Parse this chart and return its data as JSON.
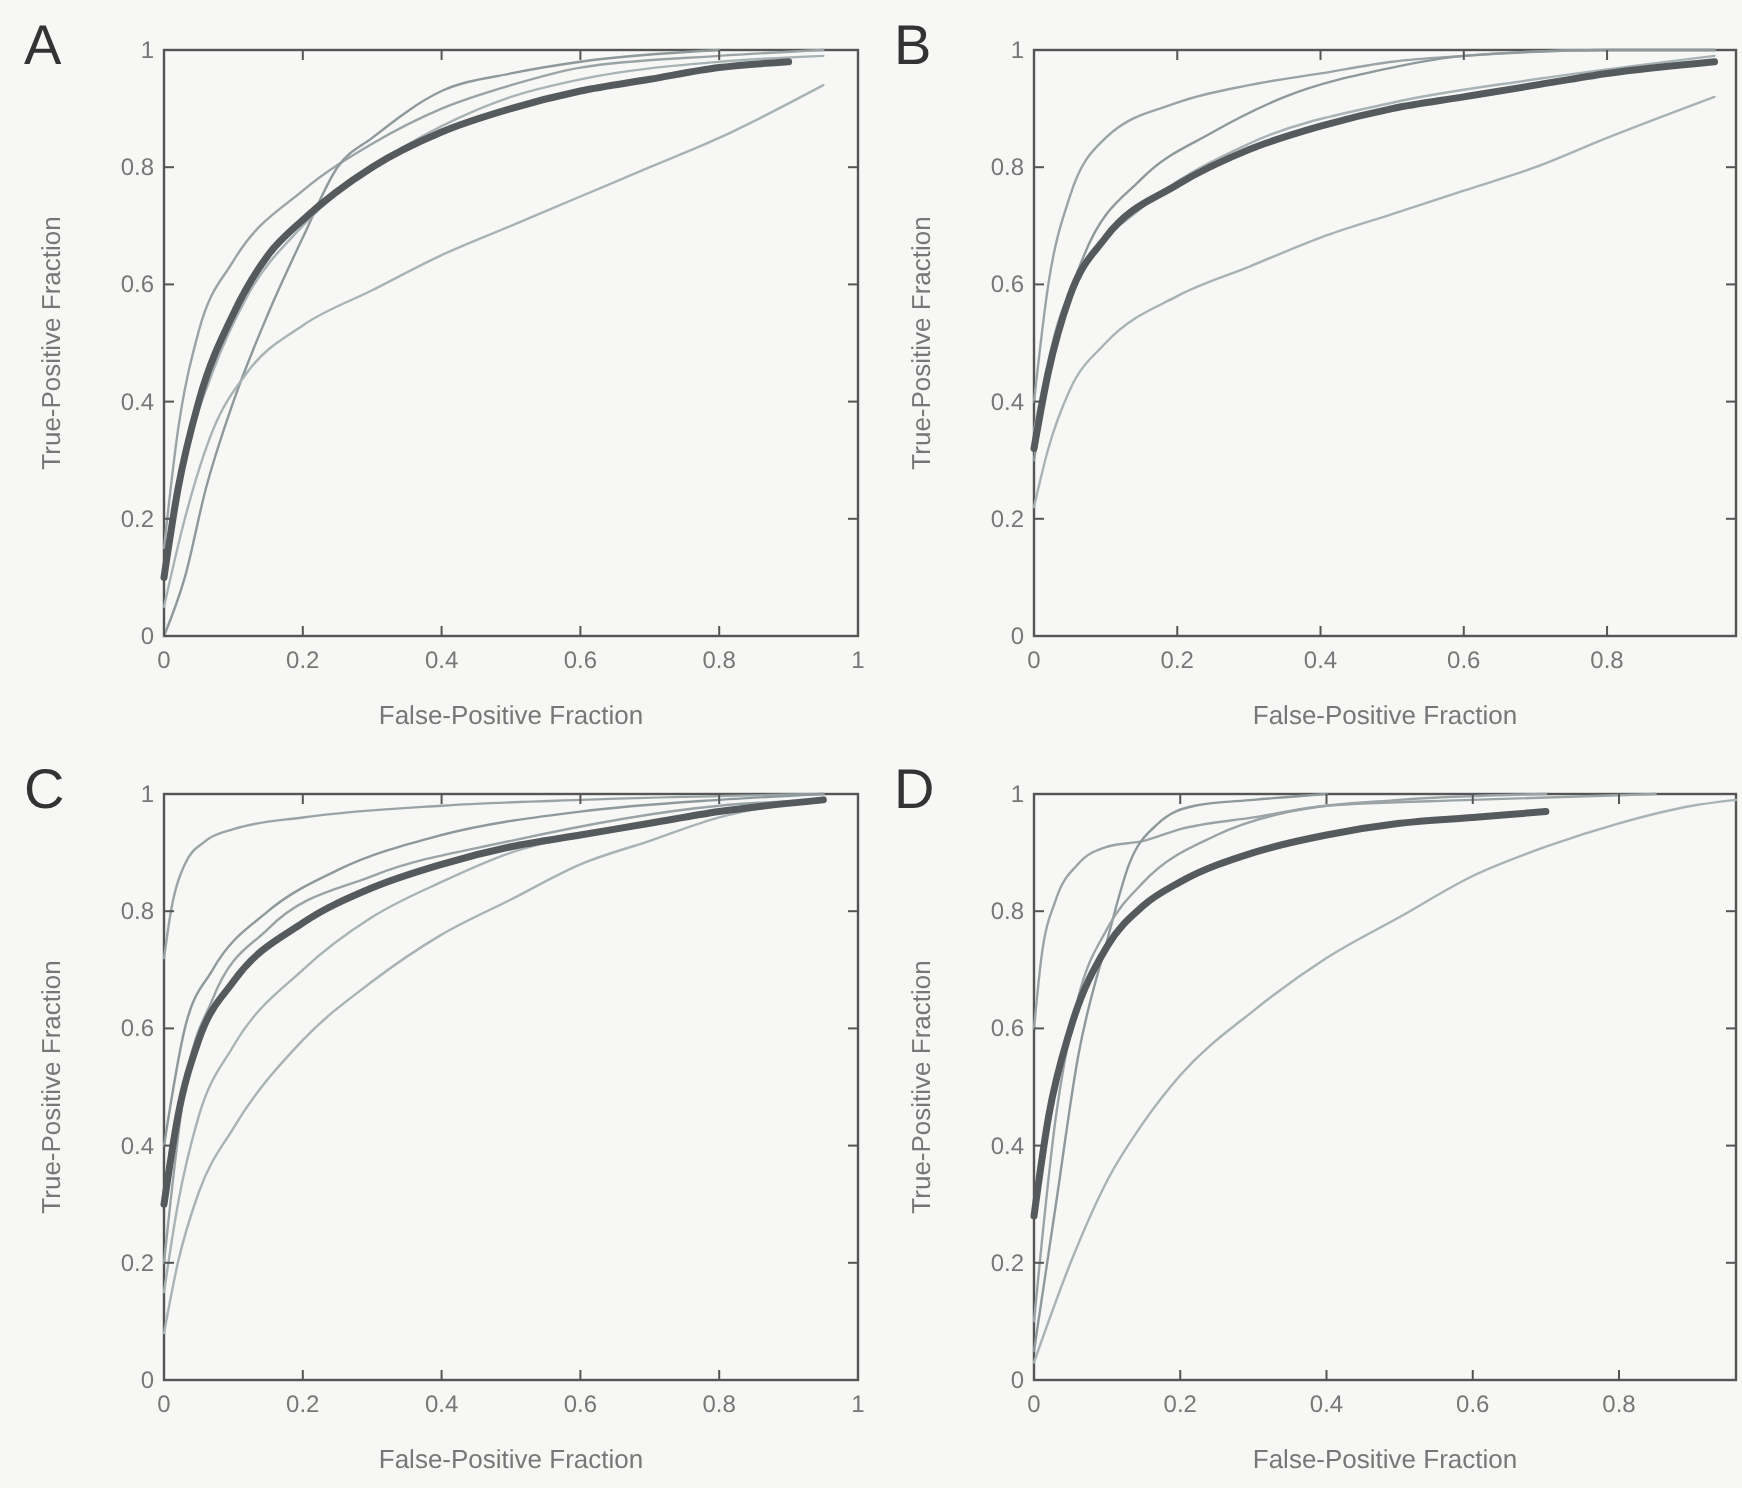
{
  "chart_data": [
    {
      "type": "line",
      "title": "A",
      "xlabel": "False-Positive Fraction",
      "ylabel": "True-Positive Fraction",
      "xlim": [
        0,
        1
      ],
      "ylim": [
        0,
        1
      ],
      "xticks": [
        0,
        0.2,
        0.4,
        0.6,
        0.8,
        1
      ],
      "yticks": [
        0,
        0.2,
        0.4,
        0.6,
        0.8,
        1
      ],
      "grid": false,
      "marker": "none",
      "line_style": "solid",
      "series": [
        {
          "color": "#9aa4a6",
          "x": [
            0,
            0.02,
            0.05,
            0.1,
            0.2,
            0.3,
            0.4,
            0.5,
            0.6,
            0.8,
            0.95
          ],
          "values": [
            0.15,
            0.35,
            0.52,
            0.64,
            0.76,
            0.84,
            0.9,
            0.94,
            0.97,
            0.99,
            1
          ]
        },
        {
          "color": "#8e999c",
          "x": [
            0,
            0.03,
            0.06,
            0.1,
            0.15,
            0.2,
            0.25,
            0.3,
            0.4,
            0.5,
            0.6,
            0.8
          ],
          "values": [
            0,
            0.1,
            0.25,
            0.4,
            0.55,
            0.68,
            0.8,
            0.85,
            0.93,
            0.96,
            0.98,
            1
          ]
        },
        {
          "color": "#a7b3b5",
          "x": [
            0,
            0.03,
            0.07,
            0.12,
            0.2,
            0.3,
            0.4,
            0.5,
            0.6,
            0.7,
            0.8,
            0.95
          ],
          "values": [
            0.05,
            0.2,
            0.35,
            0.45,
            0.53,
            0.59,
            0.65,
            0.7,
            0.75,
            0.8,
            0.85,
            0.94
          ]
        },
        {
          "color": "#a7b3b5",
          "x": [
            0,
            0.03,
            0.07,
            0.12,
            0.2,
            0.3,
            0.4,
            0.5,
            0.6,
            0.8,
            0.95
          ],
          "values": [
            0.1,
            0.3,
            0.45,
            0.58,
            0.7,
            0.8,
            0.87,
            0.92,
            0.95,
            0.98,
            0.99
          ]
        },
        {
          "color": "#555a5c",
          "x": [
            0,
            0.02,
            0.05,
            0.1,
            0.15,
            0.2,
            0.3,
            0.4,
            0.5,
            0.6,
            0.7,
            0.8,
            0.9
          ],
          "values": [
            0.1,
            0.25,
            0.4,
            0.55,
            0.65,
            0.71,
            0.8,
            0.86,
            0.9,
            0.93,
            0.95,
            0.97,
            0.98
          ]
        }
      ]
    },
    {
      "type": "line",
      "title": "B",
      "xlabel": "False-Positive Fraction",
      "ylabel": "True-Positive Fraction",
      "xlim": [
        0,
        0.98
      ],
      "ylim": [
        0,
        1
      ],
      "xticks": [
        0,
        0.2,
        0.4,
        0.6,
        0.8
      ],
      "yticks": [
        0,
        0.2,
        0.4,
        0.6,
        0.8,
        1
      ],
      "grid": false,
      "marker": "none",
      "line_style": "solid",
      "series": [
        {
          "color": "#9aa4a6",
          "x": [
            0,
            0.02,
            0.05,
            0.1,
            0.2,
            0.3,
            0.4,
            0.5,
            0.6,
            0.8,
            0.95
          ],
          "values": [
            0.4,
            0.6,
            0.75,
            0.85,
            0.91,
            0.94,
            0.96,
            0.98,
            0.99,
            1,
            1
          ]
        },
        {
          "color": "#8e999c",
          "x": [
            0,
            0.03,
            0.07,
            0.15,
            0.25,
            0.35,
            0.5,
            0.6,
            0.8,
            0.95
          ],
          "values": [
            0.3,
            0.5,
            0.65,
            0.78,
            0.86,
            0.92,
            0.97,
            0.99,
            1,
            1
          ]
        },
        {
          "color": "#a7b3b5",
          "x": [
            0,
            0.02,
            0.05,
            0.1,
            0.2,
            0.3,
            0.4,
            0.5,
            0.6,
            0.7,
            0.8,
            0.95
          ],
          "values": [
            0.22,
            0.32,
            0.42,
            0.5,
            0.58,
            0.63,
            0.68,
            0.72,
            0.76,
            0.8,
            0.85,
            0.92
          ]
        },
        {
          "color": "#a7b3b5",
          "x": [
            0,
            0.03,
            0.07,
            0.15,
            0.3,
            0.5,
            0.7,
            0.95
          ],
          "values": [
            0.35,
            0.52,
            0.63,
            0.73,
            0.84,
            0.91,
            0.95,
            0.99
          ]
        },
        {
          "color": "#555a5c",
          "x": [
            0,
            0.02,
            0.05,
            0.1,
            0.2,
            0.3,
            0.4,
            0.5,
            0.6,
            0.7,
            0.8,
            0.95
          ],
          "values": [
            0.32,
            0.45,
            0.58,
            0.68,
            0.77,
            0.83,
            0.87,
            0.9,
            0.92,
            0.94,
            0.96,
            0.98
          ]
        }
      ]
    },
    {
      "type": "line",
      "title": "C",
      "xlabel": "False-Positive Fraction",
      "ylabel": "True-Positive Fraction",
      "xlim": [
        0,
        1
      ],
      "ylim": [
        0,
        1
      ],
      "xticks": [
        0,
        0.2,
        0.4,
        0.6,
        0.8,
        1
      ],
      "yticks": [
        0,
        0.2,
        0.4,
        0.6,
        0.8,
        1
      ],
      "grid": false,
      "marker": "none",
      "line_style": "solid",
      "series": [
        {
          "color": "#9aa4a6",
          "x": [
            0,
            0.01,
            0.03,
            0.06,
            0.1,
            0.2,
            0.4,
            0.6,
            0.95
          ],
          "values": [
            0.72,
            0.8,
            0.88,
            0.92,
            0.94,
            0.96,
            0.98,
            0.99,
            1
          ]
        },
        {
          "color": "#8e999c",
          "x": [
            0,
            0.03,
            0.07,
            0.15,
            0.25,
            0.4,
            0.6,
            0.8,
            0.95
          ],
          "values": [
            0.4,
            0.6,
            0.7,
            0.8,
            0.87,
            0.93,
            0.97,
            0.99,
            1
          ]
        },
        {
          "color": "#a7b3b5",
          "x": [
            0,
            0.02,
            0.05,
            0.1,
            0.2,
            0.3,
            0.4,
            0.5,
            0.6,
            0.7,
            0.8,
            0.95
          ],
          "values": [
            0.08,
            0.2,
            0.32,
            0.43,
            0.58,
            0.68,
            0.76,
            0.82,
            0.88,
            0.92,
            0.96,
            0.99
          ]
        },
        {
          "color": "#a7b3b5",
          "x": [
            0,
            0.02,
            0.05,
            0.1,
            0.2,
            0.3,
            0.4,
            0.5,
            0.6,
            0.8,
            0.95
          ],
          "values": [
            0.15,
            0.3,
            0.45,
            0.57,
            0.7,
            0.79,
            0.85,
            0.9,
            0.93,
            0.97,
            0.99
          ]
        },
        {
          "color": "#9aa4a6",
          "x": [
            0,
            0.03,
            0.07,
            0.15,
            0.3,
            0.5,
            0.8,
            0.95
          ],
          "values": [
            0.2,
            0.5,
            0.65,
            0.77,
            0.86,
            0.92,
            0.98,
            0.99
          ]
        },
        {
          "color": "#555a5c",
          "x": [
            0,
            0.02,
            0.05,
            0.1,
            0.2,
            0.3,
            0.4,
            0.5,
            0.6,
            0.7,
            0.8,
            0.95
          ],
          "values": [
            0.3,
            0.45,
            0.58,
            0.68,
            0.78,
            0.84,
            0.88,
            0.91,
            0.93,
            0.95,
            0.97,
            0.99
          ]
        }
      ]
    },
    {
      "type": "line",
      "title": "D",
      "xlabel": "False-Positive Fraction",
      "ylabel": "True-Positive Fraction",
      "xlim": [
        0,
        0.96
      ],
      "ylim": [
        0,
        1
      ],
      "xticks": [
        0,
        0.2,
        0.4,
        0.6,
        0.8
      ],
      "yticks": [
        0,
        0.2,
        0.4,
        0.6,
        0.8,
        1
      ],
      "grid": false,
      "marker": "none",
      "line_style": "solid",
      "series": [
        {
          "color": "#9aa4a6",
          "x": [
            0,
            0.01,
            0.03,
            0.06,
            0.1,
            0.15,
            0.2,
            0.3,
            0.4,
            0.6,
            0.85
          ],
          "values": [
            0.6,
            0.72,
            0.82,
            0.88,
            0.91,
            0.92,
            0.94,
            0.96,
            0.98,
            0.99,
            1
          ]
        },
        {
          "color": "#8e999c",
          "x": [
            0,
            0.03,
            0.06,
            0.1,
            0.13,
            0.17,
            0.22,
            0.3,
            0.4
          ],
          "values": [
            0.05,
            0.3,
            0.55,
            0.75,
            0.88,
            0.95,
            0.98,
            0.99,
            1
          ]
        },
        {
          "color": "#a7b3b5",
          "x": [
            0,
            0.05,
            0.1,
            0.15,
            0.2,
            0.3,
            0.4,
            0.5,
            0.6,
            0.7,
            0.8,
            0.9,
            0.96
          ],
          "values": [
            0.03,
            0.2,
            0.34,
            0.44,
            0.52,
            0.63,
            0.72,
            0.79,
            0.86,
            0.91,
            0.95,
            0.98,
            0.99
          ]
        },
        {
          "color": "#9aa4a6",
          "x": [
            0,
            0.03,
            0.06,
            0.1,
            0.15,
            0.25,
            0.35,
            0.5,
            0.7
          ],
          "values": [
            0.1,
            0.45,
            0.65,
            0.77,
            0.85,
            0.93,
            0.97,
            0.99,
            1
          ]
        },
        {
          "color": "#555a5c",
          "x": [
            0,
            0.02,
            0.05,
            0.1,
            0.15,
            0.2,
            0.3,
            0.4,
            0.5,
            0.6,
            0.7
          ],
          "values": [
            0.28,
            0.45,
            0.6,
            0.74,
            0.81,
            0.85,
            0.9,
            0.93,
            0.95,
            0.96,
            0.97
          ]
        }
      ]
    }
  ]
}
